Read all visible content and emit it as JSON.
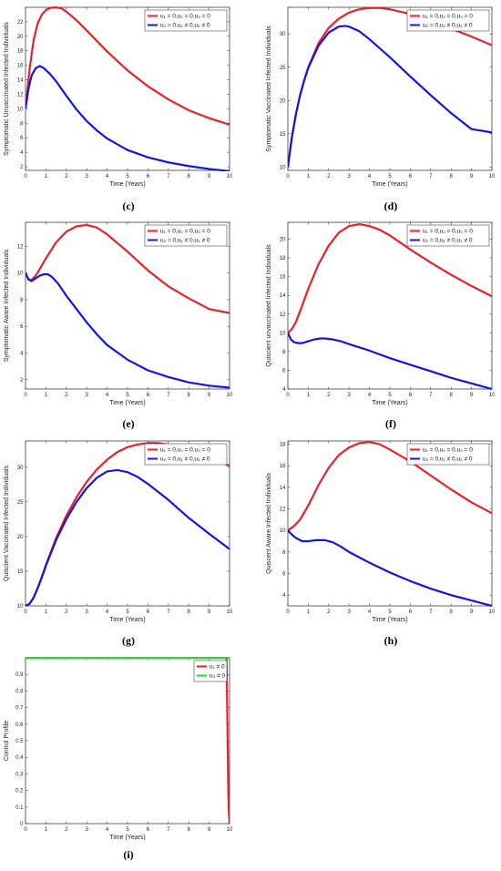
{
  "chart_data": [
    {
      "type": "line",
      "caption": "(c)",
      "xlabel": "Time (Years)",
      "ylabel": "Symptomatic Unvaccinated Infected Individuals",
      "xlim": [
        0,
        10
      ],
      "ylim": [
        1.5,
        24
      ],
      "xticks": [
        0,
        1,
        2,
        3,
        4,
        5,
        6,
        7,
        8,
        9,
        10
      ],
      "yticks": [
        2,
        4,
        6,
        8,
        10,
        12,
        14,
        16,
        18,
        20,
        22
      ],
      "legend_position": "top-right",
      "series": [
        {
          "name": "u₁ = 0,u₂ = 0,u₃ = 0",
          "color": "#e8202a",
          "x": [
            0,
            0.2,
            0.4,
            0.6,
            0.8,
            1.0,
            1.2,
            1.5,
            1.8,
            2.0,
            2.5,
            3.0,
            4.0,
            5.0,
            6.0,
            7.0,
            8.0,
            9.0,
            10.0
          ],
          "y": [
            10,
            15.5,
            19.5,
            21.8,
            23.0,
            23.6,
            23.9,
            24.0,
            23.8,
            23.4,
            22.2,
            20.8,
            17.9,
            15.3,
            13.1,
            11.3,
            9.8,
            8.7,
            7.8
          ]
        },
        {
          "name": "u₂ = 0,u₁ ≠ 0,u₃ ≠ 0",
          "color": "#1515e0",
          "x": [
            0,
            0.15,
            0.3,
            0.5,
            0.7,
            0.9,
            1.2,
            1.5,
            2.0,
            2.5,
            3.0,
            3.5,
            4.0,
            5.0,
            6.0,
            7.0,
            8.0,
            9.0,
            10.0
          ],
          "y": [
            10,
            12.8,
            14.6,
            15.6,
            15.9,
            15.6,
            14.8,
            13.8,
            11.8,
            9.9,
            8.3,
            7.0,
            5.9,
            4.3,
            3.3,
            2.6,
            2.1,
            1.7,
            1.4
          ]
        }
      ]
    },
    {
      "type": "line",
      "caption": "(d)",
      "xlabel": "Time (Years)",
      "ylabel": "Symptomatic Vaccinated Infected Individuals",
      "xlim": [
        0,
        10
      ],
      "ylim": [
        9.5,
        34
      ],
      "xticks": [
        0,
        1,
        2,
        3,
        4,
        5,
        6,
        7,
        8,
        9,
        10
      ],
      "yticks": [
        10,
        15,
        20,
        25,
        30
      ],
      "legend_position": "top-right",
      "series": [
        {
          "name": "u₁ = 0,u₂ = 0,u₃ = 0",
          "color": "#e8202a",
          "x": [
            0,
            0.2,
            0.4,
            0.6,
            0.8,
            1.0,
            1.5,
            2.0,
            2.5,
            3.0,
            3.5,
            4.0,
            4.5,
            5.0,
            6.0,
            7.0,
            8.0,
            9.0,
            10.0
          ],
          "y": [
            10,
            14.5,
            18.0,
            20.8,
            23.0,
            25.0,
            28.6,
            30.9,
            32.3,
            33.2,
            33.7,
            33.9,
            33.9,
            33.7,
            33.0,
            32.0,
            30.8,
            29.6,
            28.3
          ]
        },
        {
          "name": "u₂ = 0,u₁ ≠ 0,u₃ ≠ 0",
          "color": "#1515e0",
          "x": [
            0,
            0.2,
            0.4,
            0.6,
            0.8,
            1.0,
            1.5,
            2.0,
            2.5,
            2.8,
            3.0,
            3.5,
            4.0,
            5.0,
            6.0,
            7.0,
            8.0,
            9.0,
            10.0
          ],
          "y": [
            10,
            14.5,
            18.0,
            20.8,
            23.0,
            24.9,
            28.2,
            30.2,
            31.1,
            31.2,
            31.1,
            30.4,
            29.2,
            26.5,
            23.6,
            20.8,
            18.1,
            15.7,
            15.2
          ]
        }
      ]
    },
    {
      "type": "line",
      "caption": "(e)",
      "xlabel": "Time (Years)",
      "ylabel": "Symptomatic Aware Infected Individuals",
      "xlim": [
        0,
        10
      ],
      "ylim": [
        1.3,
        13.8
      ],
      "xticks": [
        0,
        1,
        2,
        3,
        4,
        5,
        6,
        7,
        8,
        9,
        10
      ],
      "yticks": [
        2,
        4,
        6,
        8,
        10,
        12
      ],
      "legend_position": "top-right",
      "series": [
        {
          "name": "u₁ = 0,u₂ = 0,u₃ = 0",
          "color": "#e8202a",
          "x": [
            0,
            0.15,
            0.3,
            0.5,
            0.7,
            1.0,
            1.5,
            2.0,
            2.5,
            3.0,
            3.5,
            4.0,
            5.0,
            6.0,
            7.0,
            8.0,
            9.0,
            10.0
          ],
          "y": [
            10,
            9.5,
            9.5,
            9.8,
            10.3,
            11.1,
            12.3,
            13.1,
            13.5,
            13.6,
            13.4,
            12.9,
            11.6,
            10.2,
            9.0,
            8.1,
            7.3,
            7.0
          ]
        },
        {
          "name": "u₂ = 0,u₁ ≠ 0,u₃ ≠ 0",
          "color": "#1515e0",
          "x": [
            0,
            0.15,
            0.3,
            0.5,
            0.7,
            0.9,
            1.1,
            1.3,
            1.6,
            2.0,
            2.5,
            3.0,
            3.5,
            4.0,
            5.0,
            6.0,
            7.0,
            8.0,
            9.0,
            10.0
          ],
          "y": [
            10,
            9.5,
            9.4,
            9.6,
            9.8,
            9.9,
            9.9,
            9.7,
            9.2,
            8.3,
            7.3,
            6.3,
            5.4,
            4.6,
            3.5,
            2.7,
            2.2,
            1.8,
            1.55,
            1.4
          ]
        }
      ]
    },
    {
      "type": "line",
      "caption": "(f)",
      "xlabel": "Time (Years)",
      "ylabel": "Quiscient unvaccinated Infected Individuals",
      "xlim": [
        0,
        10
      ],
      "ylim": [
        4,
        21.8
      ],
      "xticks": [
        0,
        1,
        2,
        3,
        4,
        5,
        6,
        7,
        8,
        9,
        10
      ],
      "yticks": [
        4,
        6,
        8,
        10,
        12,
        14,
        16,
        18,
        20
      ],
      "legend_position": "top-right",
      "series": [
        {
          "name": "u₁ = 0,u₂ = 0,u₃ = 0",
          "color": "#e8202a",
          "x": [
            0,
            0.2,
            0.4,
            0.6,
            0.8,
            1.0,
            1.5,
            2.0,
            2.5,
            3.0,
            3.5,
            4.0,
            4.5,
            5.0,
            6.0,
            7.0,
            8.0,
            9.0,
            10.0
          ],
          "y": [
            10,
            10.4,
            11.2,
            12.3,
            13.5,
            14.7,
            17.3,
            19.3,
            20.7,
            21.4,
            21.6,
            21.4,
            21.0,
            20.4,
            18.9,
            17.5,
            16.2,
            15.0,
            13.9
          ]
        },
        {
          "name": "u₂ = 0,u₁ ≠ 0,u₃ ≠ 0",
          "color": "#1515e0",
          "x": [
            0,
            0.15,
            0.3,
            0.5,
            0.7,
            1.0,
            1.3,
            1.6,
            1.8,
            2.2,
            2.6,
            3.0,
            4.0,
            5.0,
            6.0,
            7.0,
            8.0,
            9.0,
            10.0
          ],
          "y": [
            10,
            9.3,
            9.0,
            8.9,
            8.9,
            9.1,
            9.3,
            9.4,
            9.4,
            9.3,
            9.1,
            8.8,
            8.1,
            7.3,
            6.6,
            5.9,
            5.2,
            4.6,
            4.0
          ]
        }
      ]
    },
    {
      "type": "line",
      "caption": "(g)",
      "xlabel": "Time (Years)",
      "ylabel": "Quiscient Vaccinated Infected Individuals",
      "xlim": [
        0,
        10
      ],
      "ylim": [
        10,
        33.8
      ],
      "xticks": [
        0,
        1,
        2,
        3,
        4,
        5,
        6,
        7,
        8,
        9,
        10
      ],
      "yticks": [
        10,
        15,
        20,
        25,
        30
      ],
      "legend_position": "top-right",
      "series": [
        {
          "name": "u₁ = 0,u₂ = 0,u₃ = 0",
          "color": "#e8202a",
          "x": [
            0,
            0.2,
            0.4,
            0.6,
            0.8,
            1.0,
            1.5,
            2.0,
            2.5,
            3.0,
            3.5,
            4.0,
            4.5,
            5.0,
            5.5,
            6.0,
            6.5,
            7.0,
            8.0,
            9.0,
            10.0
          ],
          "y": [
            10,
            10.3,
            11.2,
            12.6,
            14.2,
            15.9,
            19.8,
            23.0,
            25.7,
            27.9,
            29.7,
            31.1,
            32.2,
            32.9,
            33.3,
            33.5,
            33.5,
            33.3,
            32.6,
            31.5,
            30.2
          ]
        },
        {
          "name": "u₂ = 0,u₁ ≠ 0,u₃ ≠ 0",
          "color": "#1515e0",
          "x": [
            0,
            0.2,
            0.4,
            0.6,
            0.8,
            1.0,
            1.5,
            2.0,
            2.5,
            3.0,
            3.5,
            4.0,
            4.5,
            5.0,
            5.5,
            6.0,
            7.0,
            8.0,
            9.0,
            10.0
          ],
          "y": [
            10,
            10.3,
            11.2,
            12.6,
            14.1,
            15.8,
            19.5,
            22.5,
            25.0,
            27.0,
            28.5,
            29.4,
            29.6,
            29.3,
            28.6,
            27.6,
            25.3,
            22.7,
            20.4,
            18.2
          ]
        }
      ]
    },
    {
      "type": "line",
      "caption": "(h)",
      "xlabel": "Time (Years)",
      "ylabel": "Quiscent Aware Infected Individuals",
      "xlim": [
        0,
        10
      ],
      "ylim": [
        3,
        18.3
      ],
      "xticks": [
        0,
        1,
        2,
        3,
        4,
        5,
        6,
        7,
        8,
        9,
        10
      ],
      "yticks": [
        4,
        6,
        8,
        10,
        12,
        14,
        16,
        18
      ],
      "legend_position": "top-right",
      "series": [
        {
          "name": "u₁ = 0,u₂ = 0,u₃ = 0",
          "color": "#e8202a",
          "x": [
            0,
            0.3,
            0.6,
            1.0,
            1.5,
            2.0,
            2.5,
            3.0,
            3.5,
            4.0,
            4.5,
            5.0,
            6.0,
            7.0,
            8.0,
            9.0,
            10.0
          ],
          "y": [
            10,
            10.4,
            11.0,
            12.3,
            14.2,
            15.8,
            17.0,
            17.7,
            18.1,
            18.2,
            18.0,
            17.5,
            16.4,
            15.1,
            13.8,
            12.6,
            11.6
          ]
        },
        {
          "name": "u₂ = 0,u₁ ≠ 0,u₃ ≠ 0",
          "color": "#1515e0",
          "x": [
            0,
            0.2,
            0.4,
            0.7,
            1.0,
            1.4,
            1.8,
            2.2,
            2.6,
            3.0,
            3.5,
            4.0,
            5.0,
            6.0,
            7.0,
            8.0,
            9.0,
            10.0
          ],
          "y": [
            10,
            9.6,
            9.3,
            9.0,
            9.0,
            9.1,
            9.1,
            8.9,
            8.5,
            8.0,
            7.5,
            7.0,
            6.1,
            5.3,
            4.6,
            4.0,
            3.5,
            3.0
          ]
        }
      ]
    },
    {
      "type": "line",
      "caption": "(i)",
      "xlabel": "Time (Years)",
      "ylabel": "Control Profile",
      "xlim": [
        0,
        10
      ],
      "ylim": [
        0,
        1
      ],
      "xticks": [
        0,
        1,
        2,
        3,
        4,
        5,
        6,
        7,
        8,
        9,
        10
      ],
      "yticks": [
        0,
        0.1,
        0.2,
        0.3,
        0.4,
        0.5,
        0.6,
        0.7,
        0.8,
        0.9
      ],
      "legend_position": "top-right",
      "series": [
        {
          "name": "u₁ ≠ 0",
          "color": "#e8202a",
          "x": [
            0,
            9.85,
            9.88,
            9.91,
            9.94,
            9.97,
            10.0
          ],
          "y": [
            1.0,
            1.0,
            0.75,
            0.45,
            0.18,
            0.06,
            0.0
          ]
        },
        {
          "name": "u₃ ≠ 0",
          "color": "#22dd22",
          "x": [
            0,
            9.9,
            10.0
          ],
          "y": [
            1.0,
            1.0,
            1.0
          ]
        }
      ]
    }
  ]
}
